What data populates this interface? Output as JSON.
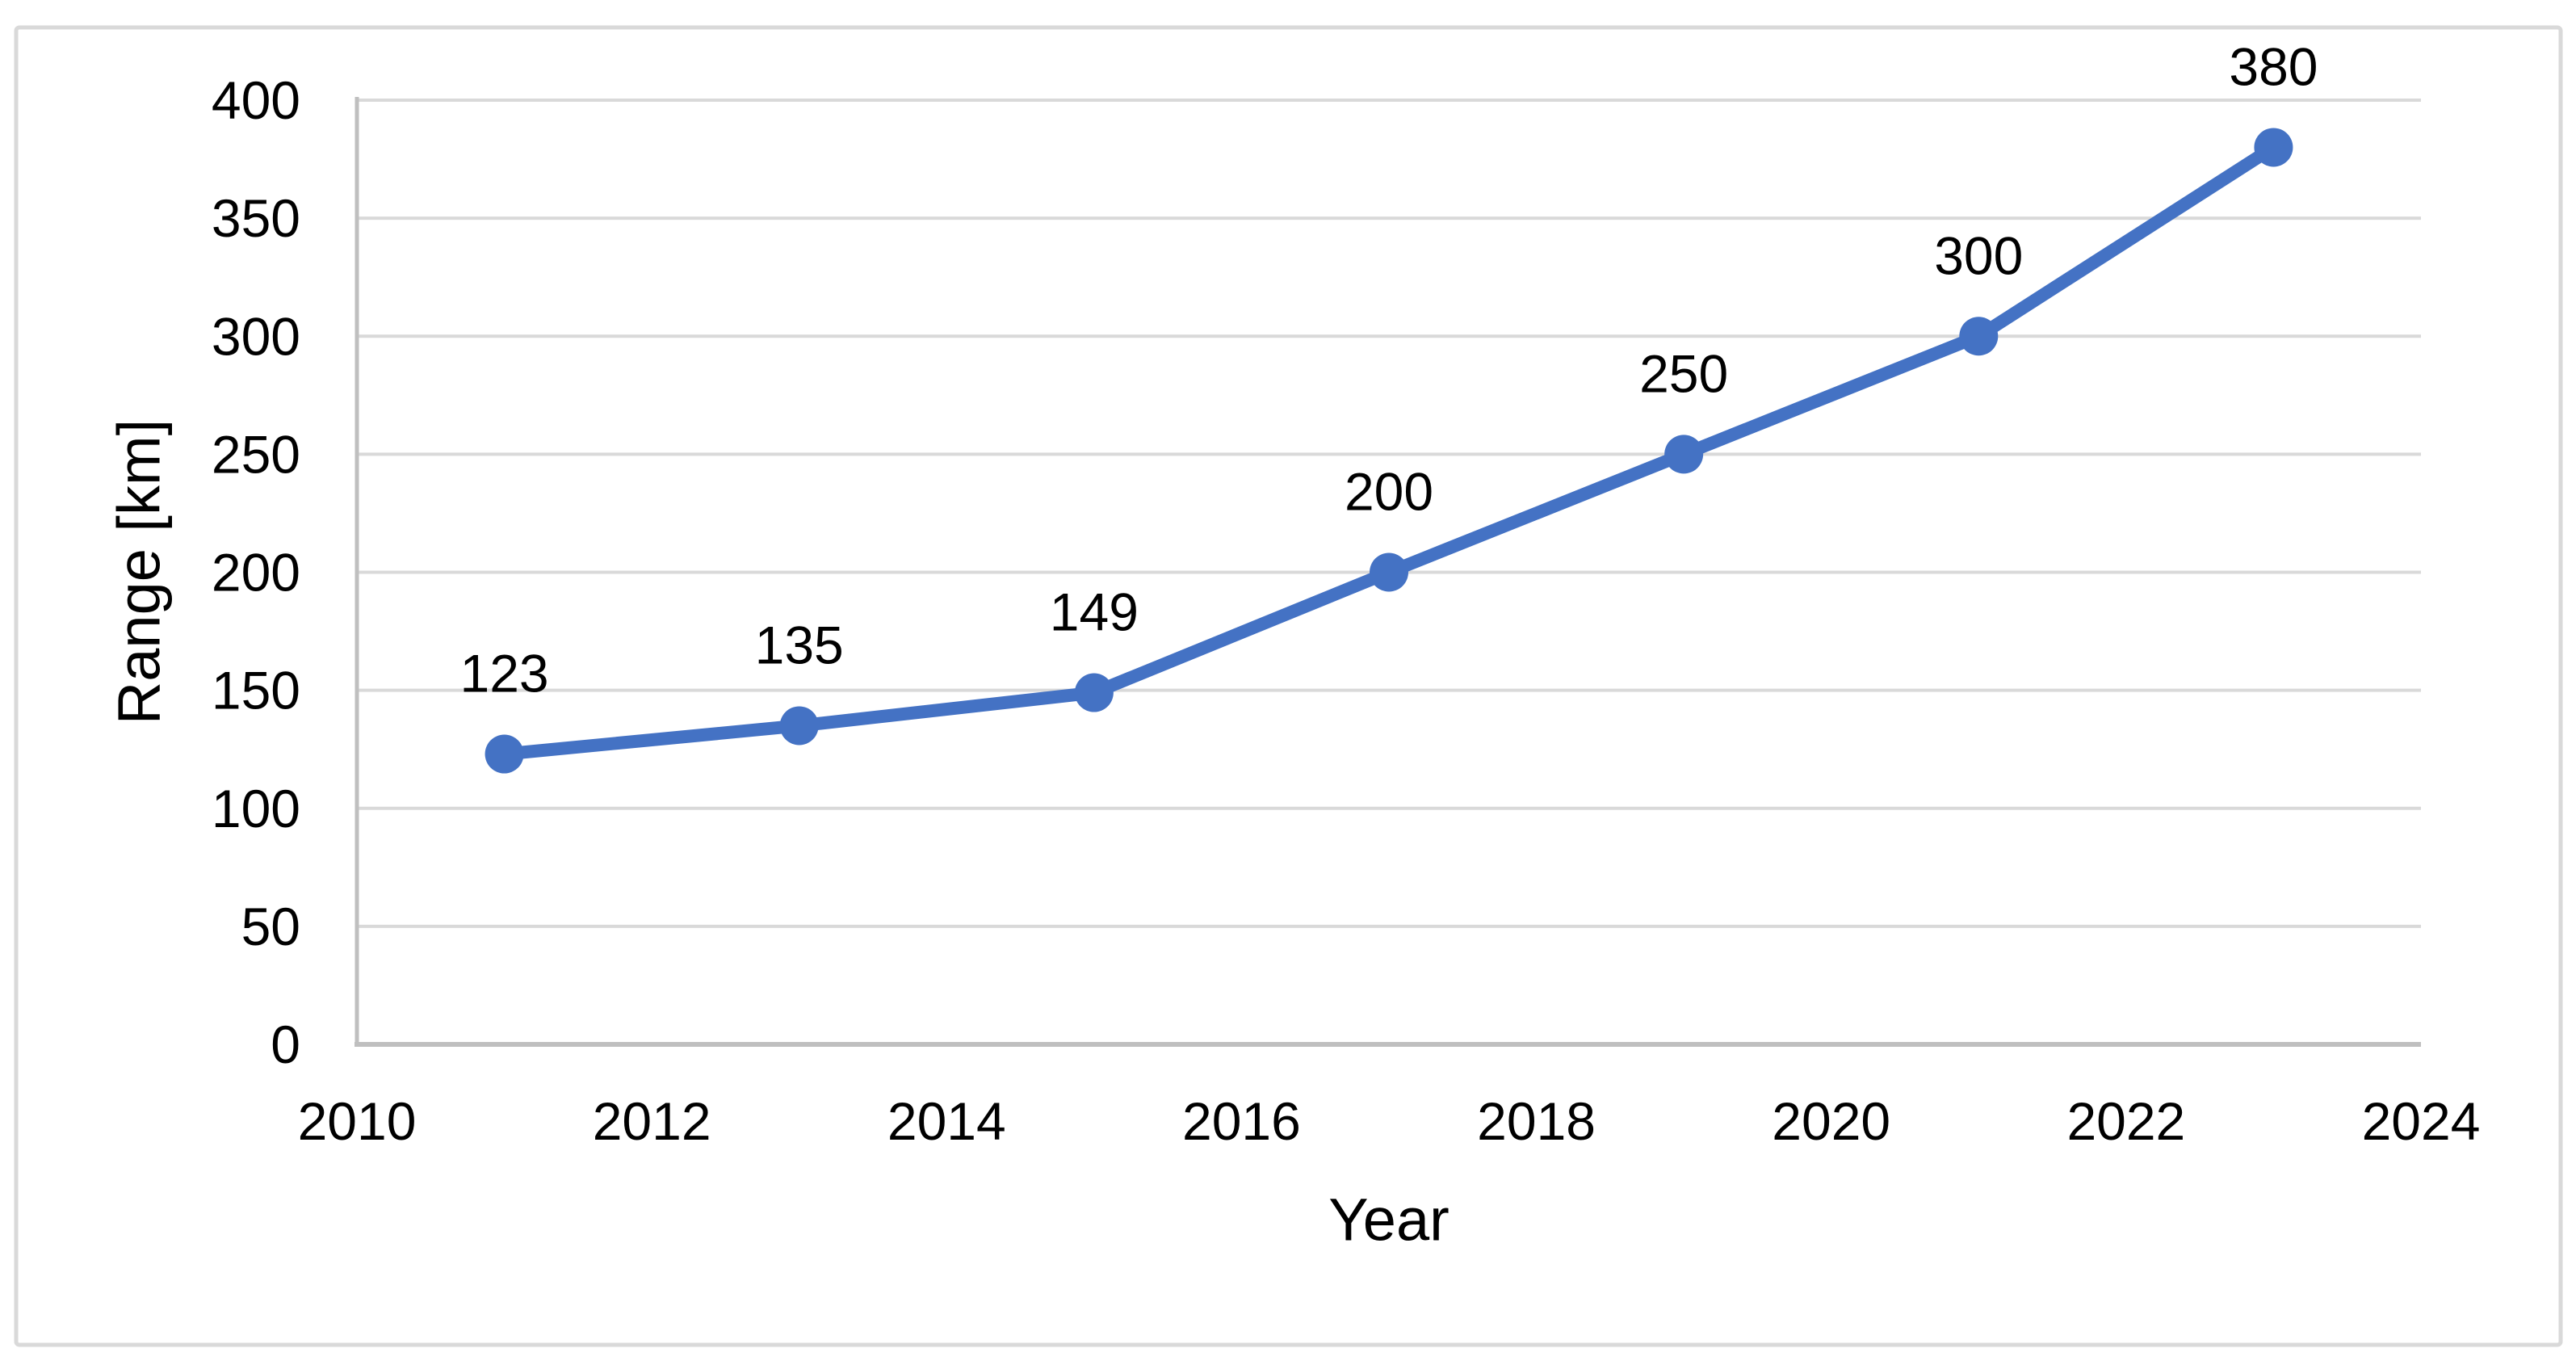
{
  "chart_data": {
    "type": "line",
    "title": "",
    "xlabel": "Year",
    "ylabel": "Range [km]",
    "x": [
      2011,
      2013,
      2015,
      2017,
      2019,
      2021,
      2023
    ],
    "series": [
      {
        "name": "Range [km]",
        "values": [
          123,
          135,
          149,
          200,
          250,
          300,
          380
        ]
      }
    ],
    "data_labels": [
      "123",
      "135",
      "149",
      "200",
      "250",
      "300",
      "380"
    ],
    "xlim": [
      2010,
      2024
    ],
    "ylim": [
      0,
      400
    ],
    "x_ticks": [
      "2010",
      "2012",
      "2014",
      "2016",
      "2018",
      "2020",
      "2022",
      "2024"
    ],
    "y_ticks": [
      "0",
      "50",
      "100",
      "150",
      "200",
      "250",
      "300",
      "350",
      "400"
    ],
    "grid": "horizontal",
    "legend": "none",
    "marker": "circle",
    "colors": {
      "series": "#4472C4",
      "gridline": "#D9D9D9",
      "axis_line": "#BFBFBF",
      "frame_border": "#D9D9D9",
      "text": "#000000",
      "background": "#FFFFFF"
    }
  }
}
